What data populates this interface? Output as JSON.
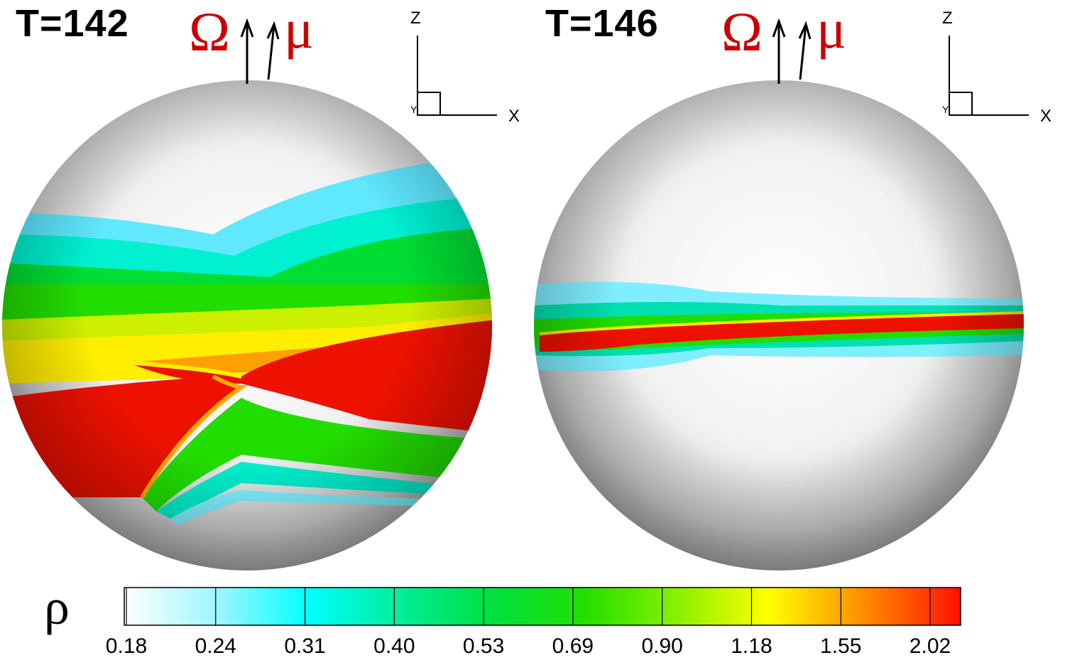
{
  "panels": [
    {
      "time_label": "T=142",
      "omega_symbol": "Ω",
      "mu_symbol": "μ"
    },
    {
      "time_label": "T=146",
      "omega_symbol": "Ω",
      "mu_symbol": "μ"
    }
  ],
  "axes_triad": {
    "z": "Z",
    "x": "X",
    "y": "Y"
  },
  "colorbar": {
    "symbol": "ρ",
    "ticks": [
      "0.18",
      "0.24",
      "0.31",
      "0.40",
      "0.53",
      "0.69",
      "0.90",
      "1.18",
      "1.55",
      "2.02"
    ],
    "colors": [
      "#ffffff",
      "#3ff6ff",
      "#00ffff",
      "#00ee88",
      "#00dd00",
      "#33dd00",
      "#aaff00",
      "#ffff00",
      "#ffa500",
      "#ff4400",
      "#ee0000"
    ]
  }
}
